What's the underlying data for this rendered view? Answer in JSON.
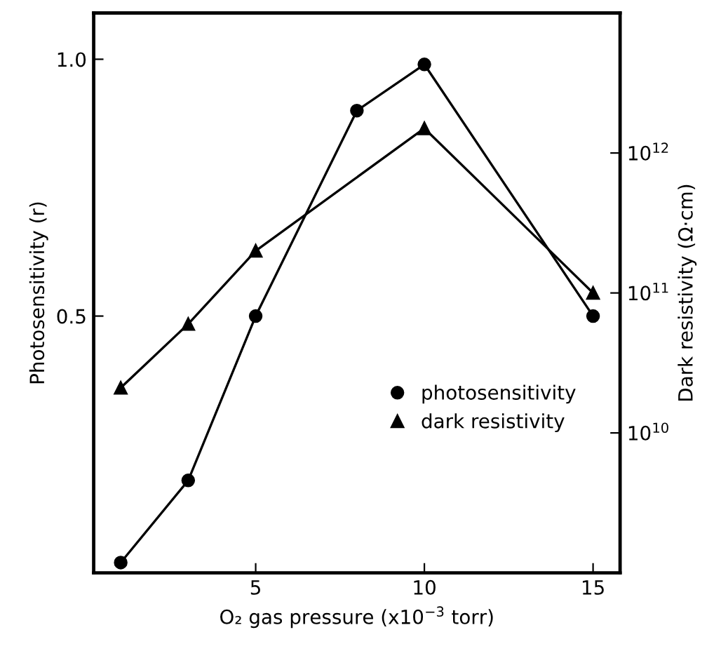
{
  "chart_data": {
    "type": "line",
    "xlabel": "O₂ gas pressure (x10$^{−3}$ torr)",
    "ylabel": "Photosensitivity (r)",
    "y2label": "Dark resistivity (Ω·cm)",
    "x": [
      1,
      3,
      5,
      8,
      10,
      15
    ],
    "series": [
      {
        "name": "photosensitivity",
        "color": "#000000",
        "marker": "circle",
        "values": [
          0.02,
          0.18,
          0.5,
          0.9,
          0.99,
          0.5
        ]
      },
      {
        "name": "dark resistivity",
        "color": "#000000",
        "marker": "triangle",
        "axis": "y2",
        "x": [
          1,
          3,
          5,
          10,
          15
        ],
        "values": [
          21000000000.0,
          60000000000.0,
          200000000000.0,
          1500000000000.0,
          100000000000.0
        ]
      }
    ],
    "xlim": [
      0.2,
      15.8
    ],
    "xticks": [
      5,
      10,
      15
    ],
    "ylim": [
      0,
      1.09
    ],
    "yticks": [
      0.5,
      {
        "value": 1.0,
        "label": "1.0"
      }
    ],
    "log": "y2",
    "y2lim": [
      1000000000.0,
      10000000000000.0
    ],
    "y2ticks": [
      {
        "value": 10000000000.0,
        "label": "10$^{10}$"
      },
      {
        "value": 100000000000.0,
        "label": "10$^{11}$"
      },
      {
        "value": 1000000000000.0,
        "label": "10$^{12}$"
      }
    ],
    "line_style": "solid",
    "grid": false,
    "legend": "bottom right"
  }
}
